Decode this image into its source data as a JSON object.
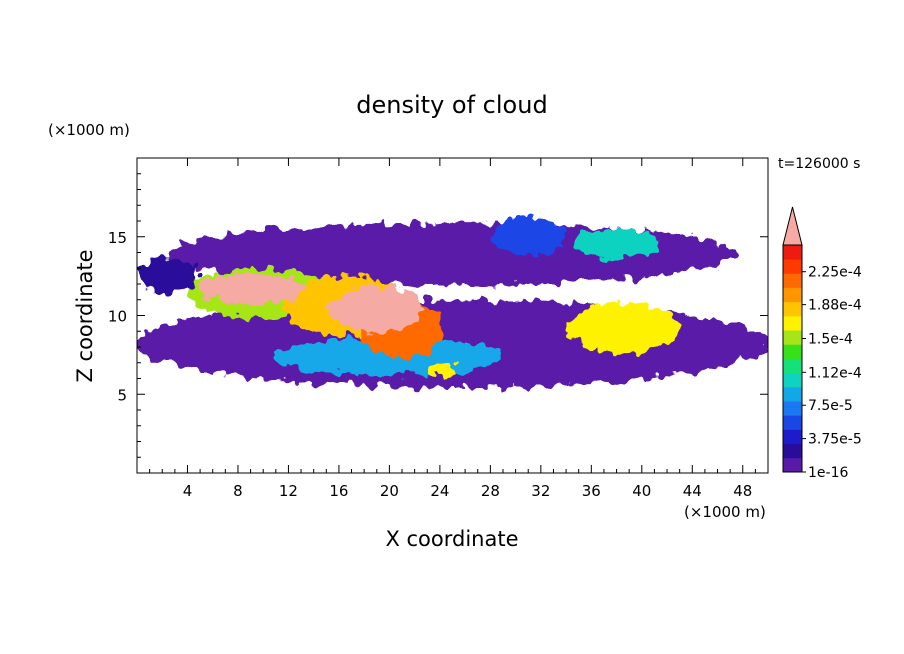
{
  "chart_data": {
    "type": "heatmap",
    "title": "density of cloud",
    "xlabel": "X coordinate",
    "ylabel": "Z coordinate",
    "x_unit": "(×1000 m)",
    "y_unit": "(×1000 m)",
    "time_label": "t=126000 s",
    "xlim": [
      0,
      50
    ],
    "ylim": [
      0,
      20
    ],
    "x_ticks": [
      4,
      8,
      12,
      16,
      20,
      24,
      28,
      32,
      36,
      40,
      44,
      48
    ],
    "y_ticks": [
      5,
      10,
      15
    ],
    "grid": false,
    "colorbar": {
      "labels": [
        "1e-16",
        "3.75e-5",
        "7.5e-5",
        "1.12e-4",
        "1.5e-4",
        "1.88e-4",
        "2.25e-4"
      ],
      "label_levels": [
        0,
        3.75e-05,
        7.5e-05,
        0.000112,
        0.00015,
        0.000188,
        0.000225
      ],
      "max_level": 0.000255,
      "extend": "max",
      "colors": [
        "#5a1aa8",
        "#2a0c9a",
        "#1c1ccc",
        "#1a46e6",
        "#1a78f0",
        "#12a8e8",
        "#10d2c0",
        "#16e07a",
        "#38e01a",
        "#a6e618",
        "#fff200",
        "#ffc400",
        "#ff9600",
        "#ff6a00",
        "#ff3a00",
        "#ee1c10"
      ],
      "over_color": "#f5aaa4"
    },
    "cloud_regions": [
      {
        "x": 25,
        "z": 13.9,
        "rx": 22.5,
        "rz": 2.0,
        "level": 1e-05
      },
      {
        "x": 25,
        "z": 8.2,
        "rx": 25,
        "rz": 2.8,
        "level": 1e-05
      },
      {
        "x": 2.5,
        "z": 12.6,
        "rx": 2.5,
        "rz": 1.1,
        "level": 2e-05
      },
      {
        "x": 31,
        "z": 15.0,
        "rx": 3,
        "rz": 1.2,
        "level": 6e-05
      },
      {
        "x": 38,
        "z": 14.6,
        "rx": 3.6,
        "rz": 0.9,
        "level": 0.00011
      },
      {
        "x": 20,
        "z": 7.4,
        "rx": 9,
        "rz": 1.2,
        "level": 9e-05
      },
      {
        "x": 10,
        "z": 11.4,
        "rx": 6,
        "rz": 1.6,
        "level": 0.00015
      },
      {
        "x": 16.5,
        "z": 10.6,
        "rx": 5,
        "rz": 1.9,
        "level": 0.00019
      },
      {
        "x": 21,
        "z": 9.2,
        "rx": 3.2,
        "rz": 1.9,
        "level": 0.00022
      },
      {
        "x": 38.5,
        "z": 9.2,
        "rx": 4.5,
        "rz": 1.6,
        "level": 0.00016
      },
      {
        "x": 9,
        "z": 11.7,
        "rx": 4.2,
        "rz": 1.0,
        "level": 0.00026
      },
      {
        "x": 19,
        "z": 10.4,
        "rx": 3.6,
        "rz": 1.5,
        "level": 0.00026
      },
      {
        "x": 24.2,
        "z": 6.6,
        "rx": 1.0,
        "rz": 0.6,
        "level": 0.00016
      }
    ]
  }
}
